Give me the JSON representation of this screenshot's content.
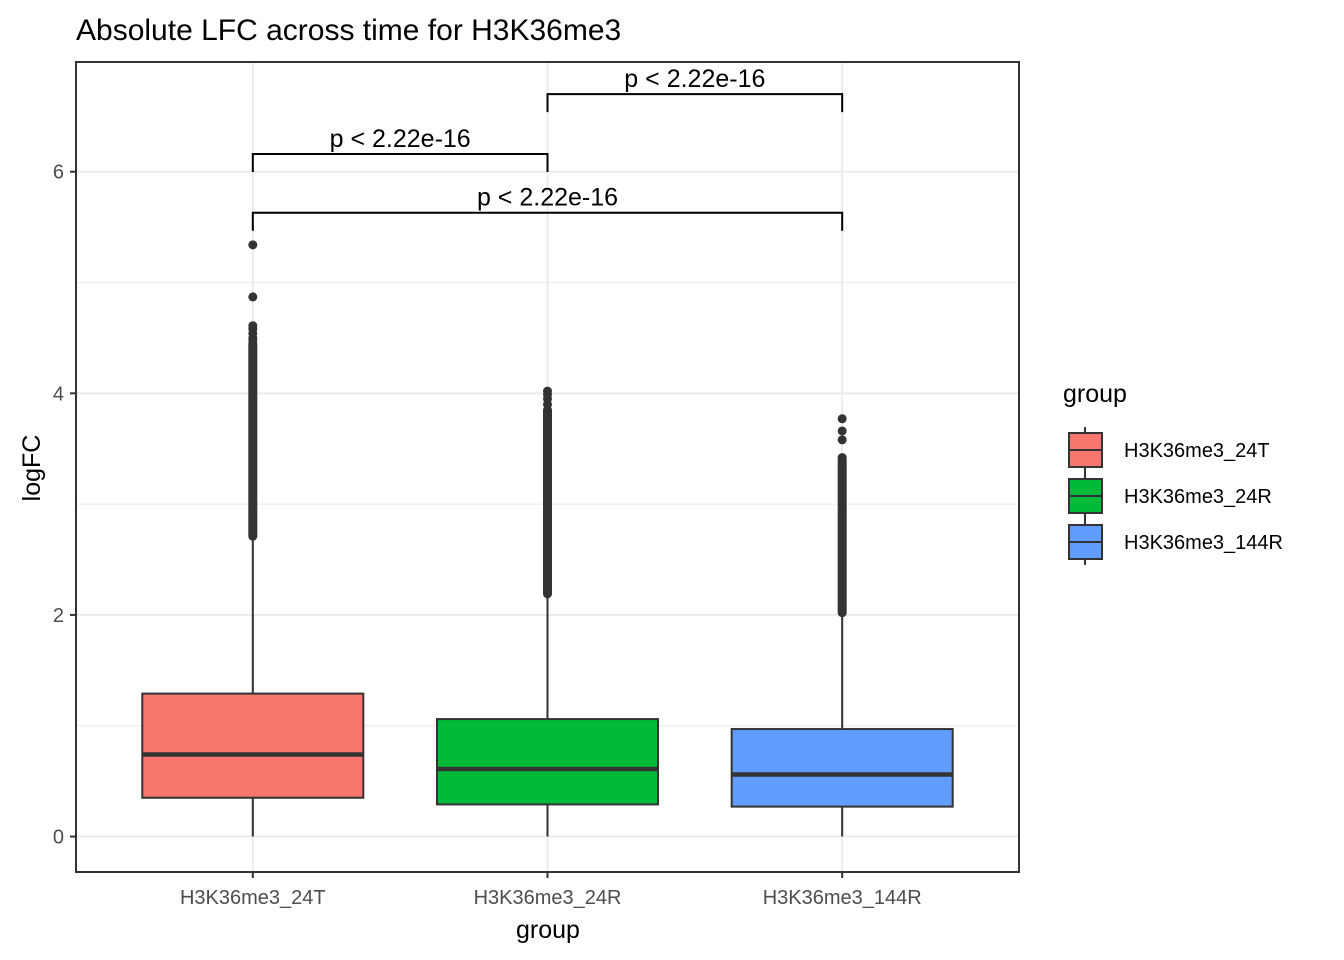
{
  "chart_data": {
    "type": "boxplot",
    "title": "Absolute LFC across time for H3K36me3",
    "xlabel": "group",
    "ylabel": "logFC",
    "ylim": [
      -0.32,
      6.99
    ],
    "yticks": [
      0,
      2,
      4,
      6
    ],
    "grid": true,
    "categories": [
      "H3K36me3_24T",
      "H3K36me3_24R",
      "H3K36me3_144R"
    ],
    "colors": [
      "#F8766D",
      "#00BA38",
      "#619CFF"
    ],
    "boxes": [
      {
        "group": "H3K36me3_24T",
        "min": 0.0,
        "q1": 0.35,
        "median": 0.74,
        "q3": 1.29,
        "max": 2.71,
        "outlier_range": [
          2.71,
          4.45
        ],
        "outliers_extra": [
          4.48,
          4.5,
          4.54,
          4.58,
          4.61,
          4.87,
          5.34
        ]
      },
      {
        "group": "H3K36me3_24R",
        "min": 0.0,
        "q1": 0.29,
        "median": 0.61,
        "q3": 1.06,
        "max": 2.19,
        "outlier_range": [
          2.19,
          3.85
        ],
        "outliers_extra": [
          3.9,
          3.95,
          3.99,
          4.02
        ]
      },
      {
        "group": "H3K36me3_144R",
        "min": 0.0,
        "q1": 0.27,
        "median": 0.56,
        "q3": 0.97,
        "max": 2.02,
        "outlier_range": [
          2.02,
          3.42
        ],
        "outliers_extra": [
          3.58,
          3.66,
          3.77
        ]
      }
    ],
    "comparisons": [
      {
        "groups": [
          "H3K36me3_24R",
          "H3K36me3_144R"
        ],
        "label": "p < 2.22e-16",
        "y": 6.7
      },
      {
        "groups": [
          "H3K36me3_24T",
          "H3K36me3_24R"
        ],
        "label": "p < 2.22e-16",
        "y": 6.16
      },
      {
        "groups": [
          "H3K36me3_24T",
          "H3K36me3_144R"
        ],
        "label": "p < 2.22e-16",
        "y": 5.63
      }
    ],
    "legend": {
      "title": "group",
      "position": "right",
      "entries": [
        "H3K36me3_24T",
        "H3K36me3_24R",
        "H3K36me3_144R"
      ]
    }
  }
}
